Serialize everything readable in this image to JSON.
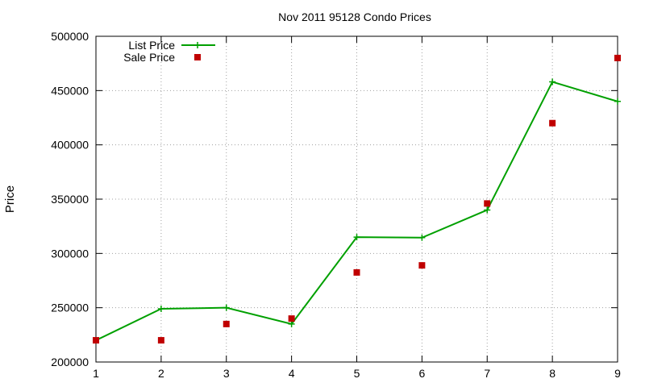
{
  "chart_data": {
    "type": "line",
    "title": "Nov 2011 95128 Condo Prices",
    "xlabel": "",
    "ylabel": "Price",
    "xlim": [
      1,
      9
    ],
    "ylim": [
      200000,
      500000
    ],
    "x_ticks": [
      "1",
      "2",
      "3",
      "4",
      "5",
      "6",
      "7",
      "8",
      "9"
    ],
    "y_ticks": [
      "200000",
      "250000",
      "300000",
      "350000",
      "400000",
      "450000",
      "500000"
    ],
    "grid": true,
    "legend_position": "top-left",
    "x": [
      1,
      2,
      3,
      4,
      5,
      6,
      7,
      8,
      9
    ],
    "series": [
      {
        "name": "List Price",
        "style": "line-with-plus-markers",
        "color": "#00a000",
        "values": [
          220000,
          249000,
          250000,
          235000,
          315000,
          314500,
          340000,
          458000,
          440000
        ]
      },
      {
        "name": "Sale Price",
        "style": "square-points",
        "color": "#c00000",
        "values": [
          220000,
          220000,
          235000,
          240000,
          282500,
          289000,
          346000,
          420000,
          480000
        ]
      }
    ]
  }
}
